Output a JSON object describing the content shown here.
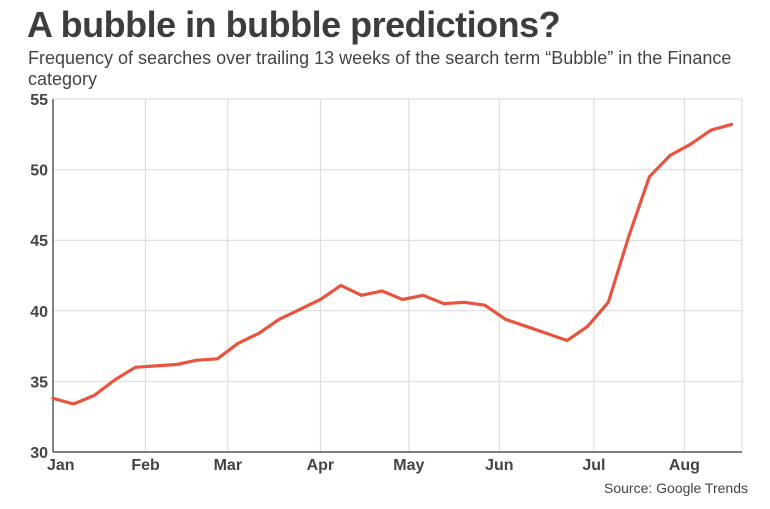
{
  "title": "A bubble in bubble predictions?",
  "subtitle": "Frequency of searches over trailing 13 weeks of the search term “Bubble” in the Finance category",
  "source": "Source: Google Trends",
  "colors": {
    "line": "#e8553e",
    "grid": "#d9d9d9",
    "axis": "#333333"
  },
  "chart_data": {
    "type": "line",
    "title": "A bubble in bubble predictions?",
    "xlabel": "",
    "ylabel": "",
    "ylim": [
      30,
      55
    ],
    "yticks": [
      30,
      35,
      40,
      45,
      50,
      55
    ],
    "xlim": [
      0,
      33.5
    ],
    "x_ticks": [
      {
        "label": "Jan",
        "value": 0
      },
      {
        "label": "Feb",
        "value": 4.5
      },
      {
        "label": "Mar",
        "value": 8.5
      },
      {
        "label": "Apr",
        "value": 13
      },
      {
        "label": "May",
        "value": 17.3
      },
      {
        "label": "Jun",
        "value": 21.7
      },
      {
        "label": "Jul",
        "value": 26.3
      },
      {
        "label": "Aug",
        "value": 30.7
      }
    ],
    "grid": true,
    "series": [
      {
        "values": [
          {
            "x": 0,
            "y": 33.8
          },
          {
            "x": 1,
            "y": 33.4
          },
          {
            "x": 2,
            "y": 34.0
          },
          {
            "x": 3,
            "y": 35.1
          },
          {
            "x": 4,
            "y": 36.0
          },
          {
            "x": 5,
            "y": 36.1
          },
          {
            "x": 6,
            "y": 36.2
          },
          {
            "x": 7,
            "y": 36.5
          },
          {
            "x": 8,
            "y": 36.6
          },
          {
            "x": 9,
            "y": 37.7
          },
          {
            "x": 10,
            "y": 38.4
          },
          {
            "x": 11,
            "y": 39.4
          },
          {
            "x": 12,
            "y": 40.1
          },
          {
            "x": 13,
            "y": 40.8
          },
          {
            "x": 14,
            "y": 41.8
          },
          {
            "x": 15,
            "y": 41.1
          },
          {
            "x": 16,
            "y": 41.4
          },
          {
            "x": 17,
            "y": 40.8
          },
          {
            "x": 18,
            "y": 41.1
          },
          {
            "x": 19,
            "y": 40.5
          },
          {
            "x": 20,
            "y": 40.6
          },
          {
            "x": 21,
            "y": 40.4
          },
          {
            "x": 22,
            "y": 39.4
          },
          {
            "x": 23,
            "y": 38.9
          },
          {
            "x": 24,
            "y": 38.4
          },
          {
            "x": 25,
            "y": 37.9
          },
          {
            "x": 26,
            "y": 38.9
          },
          {
            "x": 27,
            "y": 40.6
          },
          {
            "x": 28,
            "y": 45.3
          },
          {
            "x": 29,
            "y": 49.5
          },
          {
            "x": 30,
            "y": 51.0
          },
          {
            "x": 31,
            "y": 51.8
          },
          {
            "x": 32,
            "y": 52.8
          },
          {
            "x": 33,
            "y": 53.2
          }
        ]
      }
    ]
  }
}
